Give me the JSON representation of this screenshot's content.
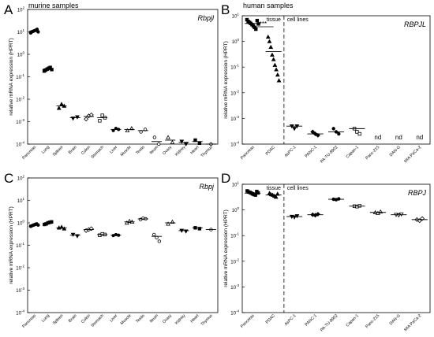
{
  "colors": {
    "ink": "#000000",
    "marker_gray": "#555555",
    "axis": "#000000",
    "background": "#ffffff"
  },
  "chart_data": [
    {
      "panel_label": "A",
      "type": "scatter",
      "title": "murine samples",
      "gene": "Rbpjl",
      "ylabel": "relative mRNA expression (HPRT)",
      "log_y": true,
      "ylim": [
        0.0001,
        100
      ],
      "ytick_labels": [
        "10^-4",
        "10^-3",
        "10^-2",
        "10^-1",
        "10^0",
        "10^1",
        "10^2"
      ],
      "categories": [
        "Pancreas",
        "Lung",
        "Spleen",
        "Brain",
        "Colon",
        "Stomach",
        "Liver",
        "Muscle",
        "Testis",
        "Ileum",
        "Ovary",
        "Kidney",
        "Heart",
        "Thymus"
      ],
      "groups": [
        {
          "category": "Pancreas",
          "marker": "circle",
          "mean": 11,
          "points": [
            9,
            10,
            10.5,
            11,
            11.5,
            12,
            13,
            10
          ]
        },
        {
          "category": "Lung",
          "marker": "square",
          "mean": 0.22,
          "points": [
            0.18,
            0.2,
            0.22,
            0.24,
            0.26,
            0.21
          ]
        },
        {
          "category": "Spleen",
          "marker": "triangle",
          "mean": 0.005,
          "points": [
            0.004,
            0.006,
            0.005
          ]
        },
        {
          "category": "Brain",
          "marker": "inv-triangle",
          "mean": 0.0015,
          "points": [
            0.0014,
            0.0016
          ]
        },
        {
          "category": "Colon",
          "marker": "diamond-open",
          "mean": 0.0017,
          "points": [
            0.0013,
            0.0018,
            0.002
          ]
        },
        {
          "category": "Stomach",
          "marker": "square-open",
          "mean": 0.0015,
          "points": [
            0.0011,
            0.0019,
            0.0015
          ]
        },
        {
          "category": "Liver",
          "marker": "hexagon",
          "mean": 0.00045,
          "points": [
            0.0004,
            0.0005,
            0.00045
          ]
        },
        {
          "category": "Muscle",
          "marker": "triangle-open",
          "mean": 0.00045,
          "points": [
            0.0004,
            0.0005
          ]
        },
        {
          "category": "Testis",
          "marker": "circle-open",
          "mean": 0.0004,
          "points": [
            0.00035,
            0.00045
          ]
        },
        {
          "category": "Ileum",
          "marker": "circle-open",
          "mean": 0.00013,
          "points": [
            0.0002,
            0.0001
          ]
        },
        {
          "category": "Ovary",
          "marker": "triangle-open",
          "mean": 0.00015,
          "points": [
            0.0002,
            0.00012
          ]
        },
        {
          "category": "Kidney",
          "marker": "inv-triangle",
          "mean": 0.00012,
          "points": [
            0.00013,
            0.0001
          ]
        },
        {
          "category": "Heart",
          "marker": "square",
          "mean": 0.00013,
          "points": [
            0.00015,
            0.00011
          ]
        },
        {
          "category": "Thymus",
          "marker": "circle-open",
          "mean": 0.0001,
          "points": [
            0.0001
          ]
        }
      ]
    },
    {
      "panel_label": "B",
      "type": "scatter",
      "title": "human samples",
      "gene": "RBPJL",
      "ylabel": "relative mRNA expression (HPRT)",
      "log_y": true,
      "ylim": [
        0.0001,
        10
      ],
      "ytick_labels": [
        "10^-4",
        "10^-3",
        "10^-2",
        "10^-1",
        "10^0",
        "10^1"
      ],
      "section_labels": [
        "tissue",
        "cell lines"
      ],
      "significance": "***",
      "categories": [
        "Pancreas",
        "PDAC",
        "AsPC-1",
        "PANC-1",
        "PA-TU-8902",
        "Capan-1",
        "Panc-215",
        "DAN-G",
        "MIA PaCa-2"
      ],
      "groups": [
        {
          "category": "Pancreas",
          "marker": "square",
          "mean": 5,
          "points": [
            7,
            6,
            5.5,
            5,
            4.5,
            4,
            3.5,
            3,
            6.5,
            4.8
          ]
        },
        {
          "category": "PDAC",
          "marker": "triangle",
          "mean": 0.4,
          "points": [
            1.5,
            1.0,
            0.6,
            0.3,
            0.2,
            0.12,
            0.08,
            0.05,
            0.03
          ]
        },
        {
          "category": "AsPC-1",
          "marker": "inv-triangle",
          "mean": 0.0005,
          "points": [
            0.0005,
            0.0004,
            0.0005
          ]
        },
        {
          "category": "PANC-1",
          "marker": "diamond",
          "mean": 0.00025,
          "points": [
            0.0003,
            0.00025,
            0.00022
          ]
        },
        {
          "category": "PA-TU-8902",
          "marker": "circle",
          "mean": 0.0003,
          "points": [
            0.0004,
            0.0003,
            0.00025
          ]
        },
        {
          "category": "Capan-1",
          "marker": "square-open",
          "mean": 0.0004,
          "points": [
            0.0004,
            0.0003,
            0.00025
          ]
        }
      ],
      "nd_labels": [
        {
          "category": "Panc-215",
          "text": "nd"
        },
        {
          "category": "DAN-G",
          "text": "nd"
        },
        {
          "category": "MIA PaCa-2",
          "text": "nd"
        }
      ]
    },
    {
      "panel_label": "C",
      "type": "scatter",
      "title": "",
      "gene": "Rbpj",
      "ylabel": "relative mRNA expression (HPRT)",
      "log_y": true,
      "ylim": [
        0.0001,
        100
      ],
      "ytick_labels": [
        "10^-4",
        "10^-3",
        "10^-2",
        "10^-1",
        "10^0",
        "10^1",
        "10^2"
      ],
      "categories": [
        "Pancreas",
        "Lung",
        "Spleen",
        "Brain",
        "Colon",
        "Stomach",
        "Liver",
        "Muscle",
        "Testis",
        "Ileum",
        "Ovary",
        "Kidney",
        "Heart",
        "Thymus"
      ],
      "groups": [
        {
          "category": "Pancreas",
          "marker": "circle",
          "mean": 0.8,
          "points": [
            0.7,
            0.75,
            0.8,
            0.85,
            0.9,
            0.8
          ]
        },
        {
          "category": "Lung",
          "marker": "square",
          "mean": 0.95,
          "points": [
            0.85,
            0.9,
            1.0,
            1.05,
            1.1
          ]
        },
        {
          "category": "Spleen",
          "marker": "triangle",
          "mean": 0.6,
          "points": [
            0.6,
            0.65,
            0.55
          ]
        },
        {
          "category": "Brain",
          "marker": "inv-triangle",
          "mean": 0.28,
          "points": [
            0.3,
            0.26
          ]
        },
        {
          "category": "Colon",
          "marker": "diamond-open",
          "mean": 0.5,
          "points": [
            0.45,
            0.5,
            0.55
          ]
        },
        {
          "category": "Stomach",
          "marker": "square-open",
          "mean": 0.3,
          "points": [
            0.28,
            0.32,
            0.3
          ]
        },
        {
          "category": "Liver",
          "marker": "hexagon",
          "mean": 0.28,
          "points": [
            0.27,
            0.3,
            0.28
          ]
        },
        {
          "category": "Muscle",
          "marker": "triangle-open",
          "mean": 1.1,
          "points": [
            1.0,
            1.2,
            1.1
          ]
        },
        {
          "category": "Testis",
          "marker": "circle-open",
          "mean": 1.5,
          "points": [
            1.4,
            1.6,
            1.5
          ]
        },
        {
          "category": "Ileum",
          "marker": "circle-open",
          "mean": 0.25,
          "points": [
            0.3,
            0.22,
            0.15
          ]
        },
        {
          "category": "Ovary",
          "marker": "triangle-open",
          "mean": 1.0,
          "points": [
            0.9,
            1.1
          ]
        },
        {
          "category": "Kidney",
          "marker": "inv-triangle",
          "mean": 0.45,
          "points": [
            0.45,
            0.42
          ]
        },
        {
          "category": "Heart",
          "marker": "square",
          "mean": 0.6,
          "points": [
            0.6,
            0.55
          ]
        },
        {
          "category": "Thymus",
          "marker": "circle-open",
          "mean": 0.5,
          "points": [
            0.5
          ]
        }
      ]
    },
    {
      "panel_label": "D",
      "type": "scatter",
      "title": "",
      "gene": "RBPJ",
      "ylabel": "relative mRNA expression (HPRT)",
      "log_y": true,
      "ylim": [
        0.0001,
        10
      ],
      "ytick_labels": [
        "10^-4",
        "10^-3",
        "10^-2",
        "10^-1",
        "10^0",
        "10^1"
      ],
      "section_labels": [
        "tissue",
        "cell lines"
      ],
      "categories": [
        "Pancreas",
        "PDAC",
        "AsPC-1",
        "PANC-1",
        "PA-TU-8902",
        "Capan-1",
        "Panc-215",
        "DAN-G",
        "MIA PaCa-2"
      ],
      "groups": [
        {
          "category": "Pancreas",
          "marker": "square",
          "mean": 4.5,
          "points": [
            5.5,
            5,
            4.8,
            4.5,
            4.2,
            4,
            3.8,
            5.2,
            4.6
          ]
        },
        {
          "category": "PDAC",
          "marker": "triangle",
          "mean": 3.8,
          "points": [
            4.5,
            4,
            3.8,
            3.5,
            3.2,
            4.2
          ]
        },
        {
          "category": "AsPC-1",
          "marker": "inv-triangle",
          "mean": 0.55,
          "points": [
            0.55,
            0.52,
            0.58
          ]
        },
        {
          "category": "PANC-1",
          "marker": "diamond",
          "mean": 0.65,
          "points": [
            0.65,
            0.62,
            0.68
          ]
        },
        {
          "category": "PA-TU-8902",
          "marker": "circle",
          "mean": 2.6,
          "points": [
            2.6,
            2.5,
            2.7
          ]
        },
        {
          "category": "Capan-1",
          "marker": "square-open",
          "mean": 1.4,
          "points": [
            1.4,
            1.35,
            1.45
          ]
        },
        {
          "category": "Panc-215",
          "marker": "triangle-open",
          "mean": 0.8,
          "points": [
            0.8,
            0.75,
            0.85
          ]
        },
        {
          "category": "DAN-G",
          "marker": "inv-triangle-open",
          "mean": 0.65,
          "points": [
            0.65,
            0.62,
            0.68
          ]
        },
        {
          "category": "MIA PaCa-2",
          "marker": "diamond-open",
          "mean": 0.42,
          "points": [
            0.42,
            0.38,
            0.46
          ]
        }
      ]
    }
  ]
}
